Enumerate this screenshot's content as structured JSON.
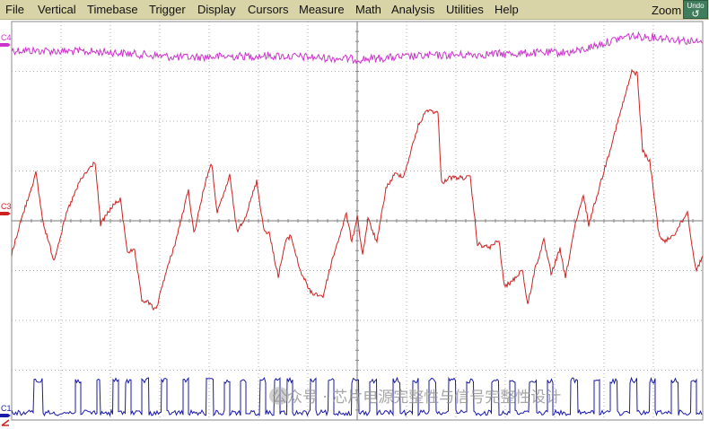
{
  "menu": {
    "items": [
      "File",
      "Vertical",
      "Timebase",
      "Trigger",
      "Display",
      "Cursors",
      "Measure",
      "Math",
      "Analysis",
      "Utilities",
      "Help"
    ],
    "zoom_label": "Zoom",
    "undo_label": "Undo",
    "undo_icon": "undo-arrow-icon"
  },
  "channels": [
    {
      "label": "C4",
      "color": "#cc33cc",
      "name": "channel-4"
    },
    {
      "label": "C3",
      "color": "#cc2222",
      "name": "channel-3"
    },
    {
      "label": "C1",
      "color": "#1a1aa8",
      "name": "channel-1"
    }
  ],
  "grid": {
    "divisions_x": 14,
    "divisions_y": 8,
    "color": "#a8a8a8"
  },
  "watermark": {
    "text": "公众号 · 芯片电源完整性与信号完整性设计"
  }
}
